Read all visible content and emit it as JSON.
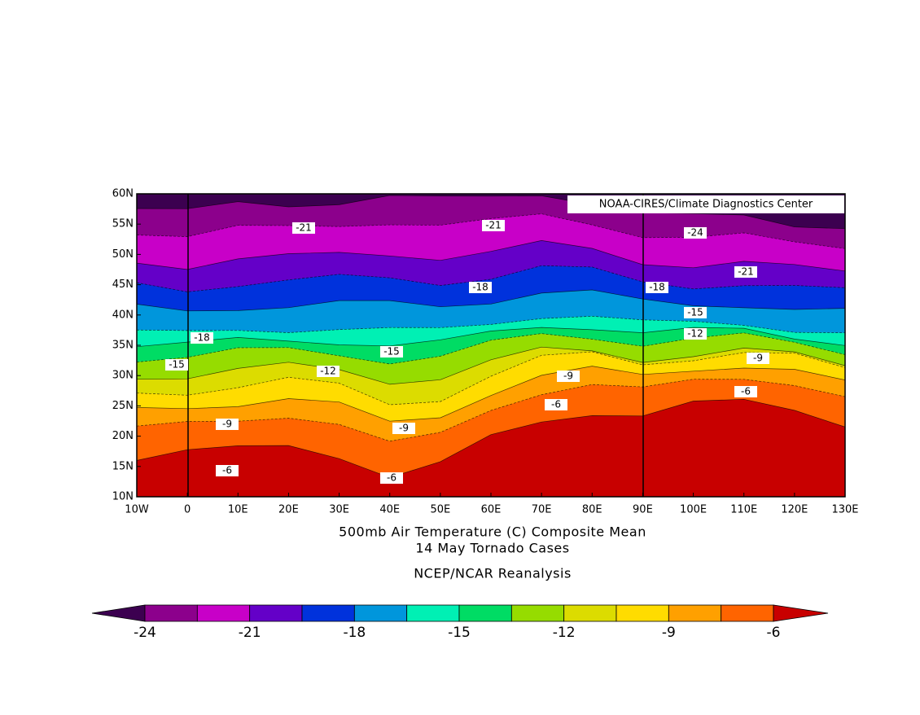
{
  "map": {
    "credit": "NOAA-CIRES/Climate Diagnostics Center",
    "title_lines": [
      "500mb Air Temperature (C) Composite Mean",
      "14 May Tornado Cases"
    ],
    "source": "NCEP/NCAR Reanalysis",
    "xlim": [
      -10,
      130
    ],
    "ylim": [
      10,
      60
    ],
    "xticks": [
      {
        "value": -10,
        "label": "10W"
      },
      0,
      {
        "value": 10,
        "label": "10E"
      },
      {
        "value": 20,
        "label": "20E"
      },
      {
        "value": 30,
        "label": "30E"
      },
      {
        "value": 40,
        "label": "40E"
      },
      {
        "value": 50,
        "label": "50E"
      },
      {
        "value": 60,
        "label": "60E"
      },
      {
        "value": 70,
        "label": "70E"
      },
      {
        "value": 80,
        "label": "80E"
      },
      {
        "value": 90,
        "label": "90E"
      },
      {
        "value": 100,
        "label": "100E"
      },
      {
        "value": 110,
        "label": "110E"
      },
      {
        "value": 120,
        "label": "120E"
      },
      {
        "value": 130,
        "label": "130E"
      }
    ],
    "yticks": [
      {
        "value": 10,
        "label": "10N"
      },
      {
        "value": 15,
        "label": "15N"
      },
      {
        "value": 20,
        "label": "20N"
      },
      {
        "value": 25,
        "label": "25N"
      },
      {
        "value": 30,
        "label": "30N"
      },
      {
        "value": 35,
        "label": "35N"
      },
      {
        "value": 40,
        "label": "40N"
      },
      {
        "value": 45,
        "label": "45N"
      },
      {
        "value": 50,
        "label": "50N"
      },
      {
        "value": 55,
        "label": "55N"
      },
      {
        "value": 60,
        "label": "60N"
      }
    ],
    "contour_labels": [
      -21,
      -21,
      -24,
      -21,
      -18,
      -18,
      -15,
      -12,
      -18,
      -15,
      -15,
      -12,
      -9,
      -9,
      -6,
      -6,
      -9,
      -9,
      -6,
      -6
    ],
    "colorbar": {
      "levels": [
        -24,
        -21,
        -18,
        -15,
        -12,
        -9,
        -6
      ],
      "colors": [
        "#3c0050",
        "#8c008c",
        "#c800c8",
        "#6400c8",
        "#0032dc",
        "#0096dc",
        "#00f0b4",
        "#00dc64",
        "#96dc00",
        "#dcdc00",
        "#ffdc00",
        "#ffa000",
        "#ff6400",
        "#c80000"
      ]
    }
  }
}
